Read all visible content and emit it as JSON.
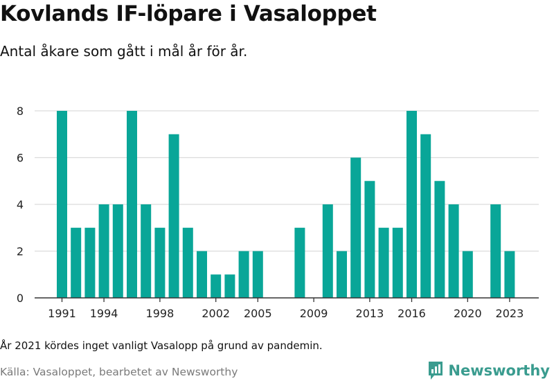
{
  "header": {
    "title": "Kovlands IF-löpare i Vasaloppet",
    "subtitle": "Antal åkare som gått i mål år för år."
  },
  "footer": {
    "note": "År 2021 kördes inget vanligt Vasalopp på grund av pandemin.",
    "source": "Källa: Vasaloppet, bearbetet av Newsworthy",
    "brand": "Newsworthy",
    "brand_icon": "newsworthy-logo-icon"
  },
  "colors": {
    "bar": "#09a698",
    "brand": "#3a9c8f",
    "grid": "#dcdcdc"
  },
  "chart_data": {
    "type": "bar",
    "x": [
      1991,
      1992,
      1993,
      1994,
      1995,
      1996,
      1997,
      1998,
      1999,
      2000,
      2001,
      2002,
      2003,
      2004,
      2005,
      2008,
      2010,
      2011,
      2012,
      2013,
      2014,
      2015,
      2016,
      2017,
      2018,
      2019,
      2020,
      2022,
      2023
    ],
    "values": [
      8,
      3,
      3,
      4,
      4,
      8,
      4,
      3,
      7,
      3,
      2,
      1,
      1,
      2,
      2,
      3,
      4,
      2,
      6,
      5,
      3,
      3,
      8,
      7,
      5,
      4,
      2,
      4,
      2
    ],
    "x_ticks": [
      1991,
      1994,
      1998,
      2002,
      2005,
      2009,
      2013,
      2016,
      2020,
      2023
    ],
    "y_ticks": [
      0,
      2,
      4,
      6,
      8
    ],
    "xlim": [
      1991,
      2023
    ],
    "ylim": [
      0,
      8
    ],
    "grid": true,
    "xlabel": "",
    "ylabel": ""
  }
}
